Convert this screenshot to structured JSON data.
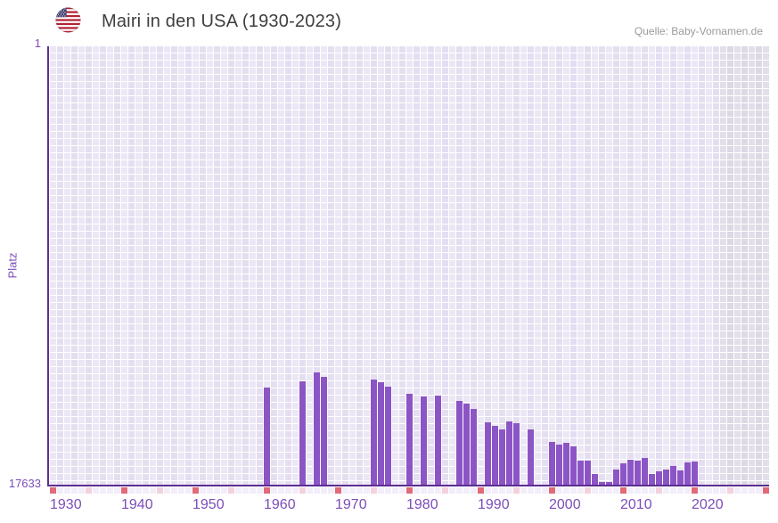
{
  "header": {
    "title": "Mairi in den USA (1930-2023)",
    "source": "Quelle: Baby-Vornamen.de",
    "flag_icon": "us-flag-icon"
  },
  "y_axis": {
    "title": "Platz",
    "top_label": "1",
    "bottom_label": "17633"
  },
  "colors": {
    "bar": "#8C55C5",
    "axis": "#5C2D91",
    "grid_cell": "#ECE7F5",
    "future_cell": "#E2DFE9",
    "ruler_year": "#F2EEF9",
    "ruler_half_decade": "#F2D2DC",
    "ruler_decade": "#E06A77",
    "tick_label": "#7C4DB8",
    "title_text": "#3E3E3E",
    "source_text": "#9B9B9B"
  },
  "chart_data": {
    "type": "bar",
    "title": "Mairi in den USA (1930-2023)",
    "xlabel": "",
    "ylabel": "Platz",
    "ylim": [
      1,
      17633
    ],
    "y_axis_inverted": true,
    "x_range": [
      1930,
      2030
    ],
    "future_years_start": 2024,
    "tick_years": [
      1930,
      1940,
      1950,
      1960,
      1970,
      1980,
      1990,
      2000,
      2010,
      2020
    ],
    "ruler_rule": "decade years red, half-decade years pink, other years plain",
    "points": [
      {
        "year": 1960,
        "rank": 13700
      },
      {
        "year": 1965,
        "rank": 13440
      },
      {
        "year": 1967,
        "rank": 13100
      },
      {
        "year": 1968,
        "rank": 13280
      },
      {
        "year": 1975,
        "rank": 13390
      },
      {
        "year": 1976,
        "rank": 13500
      },
      {
        "year": 1977,
        "rank": 13680
      },
      {
        "year": 1980,
        "rank": 13940
      },
      {
        "year": 1982,
        "rank": 14070
      },
      {
        "year": 1984,
        "rank": 14010
      },
      {
        "year": 1987,
        "rank": 14240
      },
      {
        "year": 1988,
        "rank": 14350
      },
      {
        "year": 1989,
        "rank": 14570
      },
      {
        "year": 1991,
        "rank": 15090
      },
      {
        "year": 1992,
        "rank": 15230
      },
      {
        "year": 1993,
        "rank": 15380
      },
      {
        "year": 1994,
        "rank": 15050
      },
      {
        "year": 1995,
        "rank": 15120
      },
      {
        "year": 1997,
        "rank": 15370
      },
      {
        "year": 2000,
        "rank": 15870
      },
      {
        "year": 2001,
        "rank": 16000
      },
      {
        "year": 2002,
        "rank": 15920
      },
      {
        "year": 2003,
        "rank": 16060
      },
      {
        "year": 2004,
        "rank": 16630
      },
      {
        "year": 2005,
        "rank": 16630
      },
      {
        "year": 2006,
        "rank": 17170
      },
      {
        "year": 2007,
        "rank": 17490
      },
      {
        "year": 2008,
        "rank": 17490
      },
      {
        "year": 2009,
        "rank": 16990
      },
      {
        "year": 2010,
        "rank": 16740
      },
      {
        "year": 2011,
        "rank": 16600
      },
      {
        "year": 2012,
        "rank": 16630
      },
      {
        "year": 2013,
        "rank": 16530
      },
      {
        "year": 2014,
        "rank": 17170
      },
      {
        "year": 2015,
        "rank": 17060
      },
      {
        "year": 2016,
        "rank": 16990
      },
      {
        "year": 2017,
        "rank": 16850
      },
      {
        "year": 2018,
        "rank": 17030
      },
      {
        "year": 2019,
        "rank": 16710
      },
      {
        "year": 2020,
        "rank": 16670
      }
    ]
  }
}
